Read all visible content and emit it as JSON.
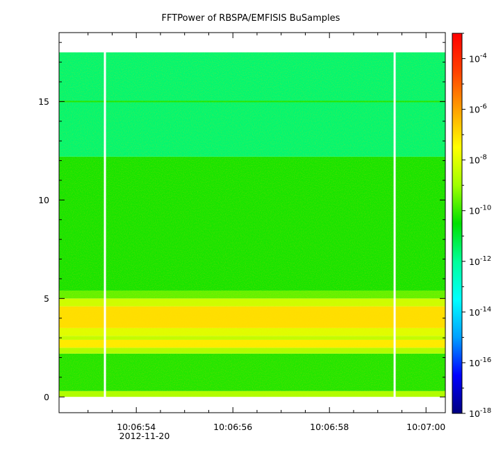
{
  "chart_data": {
    "type": "heatmap",
    "title": "FFTPower of RBSPA/EMFISIS  BuSamples",
    "xlabel": "",
    "ylabel": "",
    "x_start": "2012-11-20 10:06:52.4",
    "x_end": "2012-11-20 10:07:00.4",
    "x_ticks": [
      {
        "label": "10:06:54",
        "time": "10:06:54"
      },
      {
        "label": "10:06:56",
        "time": "10:06:56"
      },
      {
        "label": "10:06:58",
        "time": "10:06:58"
      },
      {
        "label": "10:07:00",
        "time": "10:07:00"
      }
    ],
    "x_minor_tick_times": [
      "10:06:53",
      "10:06:54.5",
      "10:06:55",
      "10:06:55.5",
      "10:06:56.5",
      "10:06:57",
      "10:06:57.5",
      "10:06:58.5",
      "10:06:59",
      "10:06:59.5",
      "10:06:53.5"
    ],
    "date_label": "2012-11-20",
    "ylim": [
      -0.8,
      18.5
    ],
    "y_ticks": [
      0,
      5,
      10,
      15
    ],
    "y_minor_ticks": [
      1,
      2,
      3,
      4,
      6,
      7,
      8,
      9,
      11,
      12,
      13,
      14,
      16,
      17,
      18
    ],
    "data_y_range": [
      0,
      17.5
    ],
    "data_gaps_x": [
      "10:06:53.35",
      "10:06:59.35"
    ],
    "colorbar": {
      "scale": "log",
      "range": [
        1e-18,
        0.001
      ],
      "tick_exponents": [
        -18,
        -16,
        -14,
        -12,
        -10,
        -8,
        -6,
        -4
      ],
      "colors": [
        "#000080",
        "#0000ff",
        "#00a0ff",
        "#00ffff",
        "#00ff9a",
        "#00e000",
        "#a0ff00",
        "#ffff00",
        "#ffa000",
        "#ff4000",
        "#ff0000"
      ]
    },
    "bands": [
      {
        "y": [
          0,
          0.3
        ],
        "level": -8.8
      },
      {
        "y": [
          0.3,
          2.2
        ],
        "level": -10.2
      },
      {
        "y": [
          2.2,
          2.5
        ],
        "level": -8.8
      },
      {
        "y": [
          2.5,
          2.9
        ],
        "level": -7.2
      },
      {
        "y": [
          2.9,
          3.1
        ],
        "level": -8.5
      },
      {
        "y": [
          3.1,
          3.5
        ],
        "level": -8.0
      },
      {
        "y": [
          3.5,
          4.6
        ],
        "level": -7.0
      },
      {
        "y": [
          4.6,
          5.0
        ],
        "level": -8.3
      },
      {
        "y": [
          5.0,
          5.4
        ],
        "level": -9.6
      },
      {
        "y": [
          5.4,
          12.2
        ],
        "level": -10.3
      },
      {
        "y": [
          12.2,
          17.5
        ],
        "level": -11.6
      }
    ],
    "line_features": [
      {
        "y": 15.0,
        "level": -10.2
      }
    ]
  }
}
